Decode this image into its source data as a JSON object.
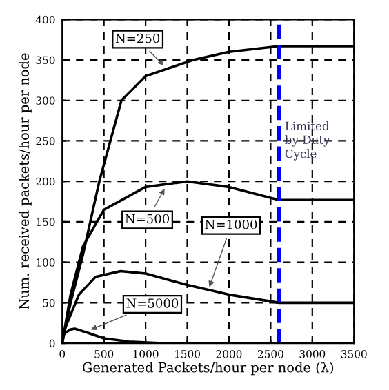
{
  "chart_data": {
    "type": "line",
    "xlabel": "Generated Packets/hour per node (λ)",
    "ylabel": "Num. received packets/hour per node",
    "series": [
      {
        "color": "#000000",
        "x": [
          0,
          100,
          250,
          445,
          710,
          1000,
          1570,
          2000,
          2600,
          3500
        ],
        "values": [
          0,
          50,
          110,
          200,
          300,
          330,
          350,
          360,
          367,
          367
        ]
      },
      {
        "color": "#000000",
        "x": [
          0,
          100,
          250,
          500,
          1000,
          1500,
          2000,
          2600,
          3500
        ],
        "values": [
          0,
          60,
          120,
          165,
          193,
          200,
          193,
          177,
          177
        ]
      },
      {
        "color": "#000000",
        "x": [
          0,
          200,
          400,
          700,
          1000,
          1500,
          2000,
          2600,
          3500
        ],
        "values": [
          10,
          60,
          82,
          89,
          86,
          72,
          60,
          50,
          50
        ]
      },
      {
        "color": "#000000",
        "x": [
          0,
          100,
          150,
          300,
          500,
          800,
          1200,
          3500
        ],
        "values": [
          10,
          17,
          18,
          13,
          6,
          2,
          0,
          0
        ]
      }
    ],
    "annotations": [
      {
        "text": "N=250",
        "x": 1250,
        "y": 340
      },
      {
        "text": "N=500",
        "x": 1250,
        "y": 195
      },
      {
        "text": "N=1000",
        "x": 1750,
        "y": 65
      },
      {
        "text": "N=5000",
        "x": 300,
        "y": 15
      },
      {
        "text": "Limited\nby Duty\nCycle",
        "x": 2600,
        "y": 250
      }
    ],
    "ref_lines": [
      {
        "axis": "x",
        "value": 2600,
        "color": "#0000ff",
        "line_style": "dashed"
      }
    ],
    "xlim": [
      0,
      3500
    ],
    "ylim": [
      0,
      400
    ],
    "xticks": [
      0,
      500,
      1000,
      1500,
      2000,
      2500,
      3000,
      3500
    ],
    "yticks": [
      0,
      50,
      100,
      150,
      200,
      250,
      300,
      350,
      400
    ],
    "grid": true,
    "line_style": "solid",
    "marker": "none",
    "legend": false
  }
}
